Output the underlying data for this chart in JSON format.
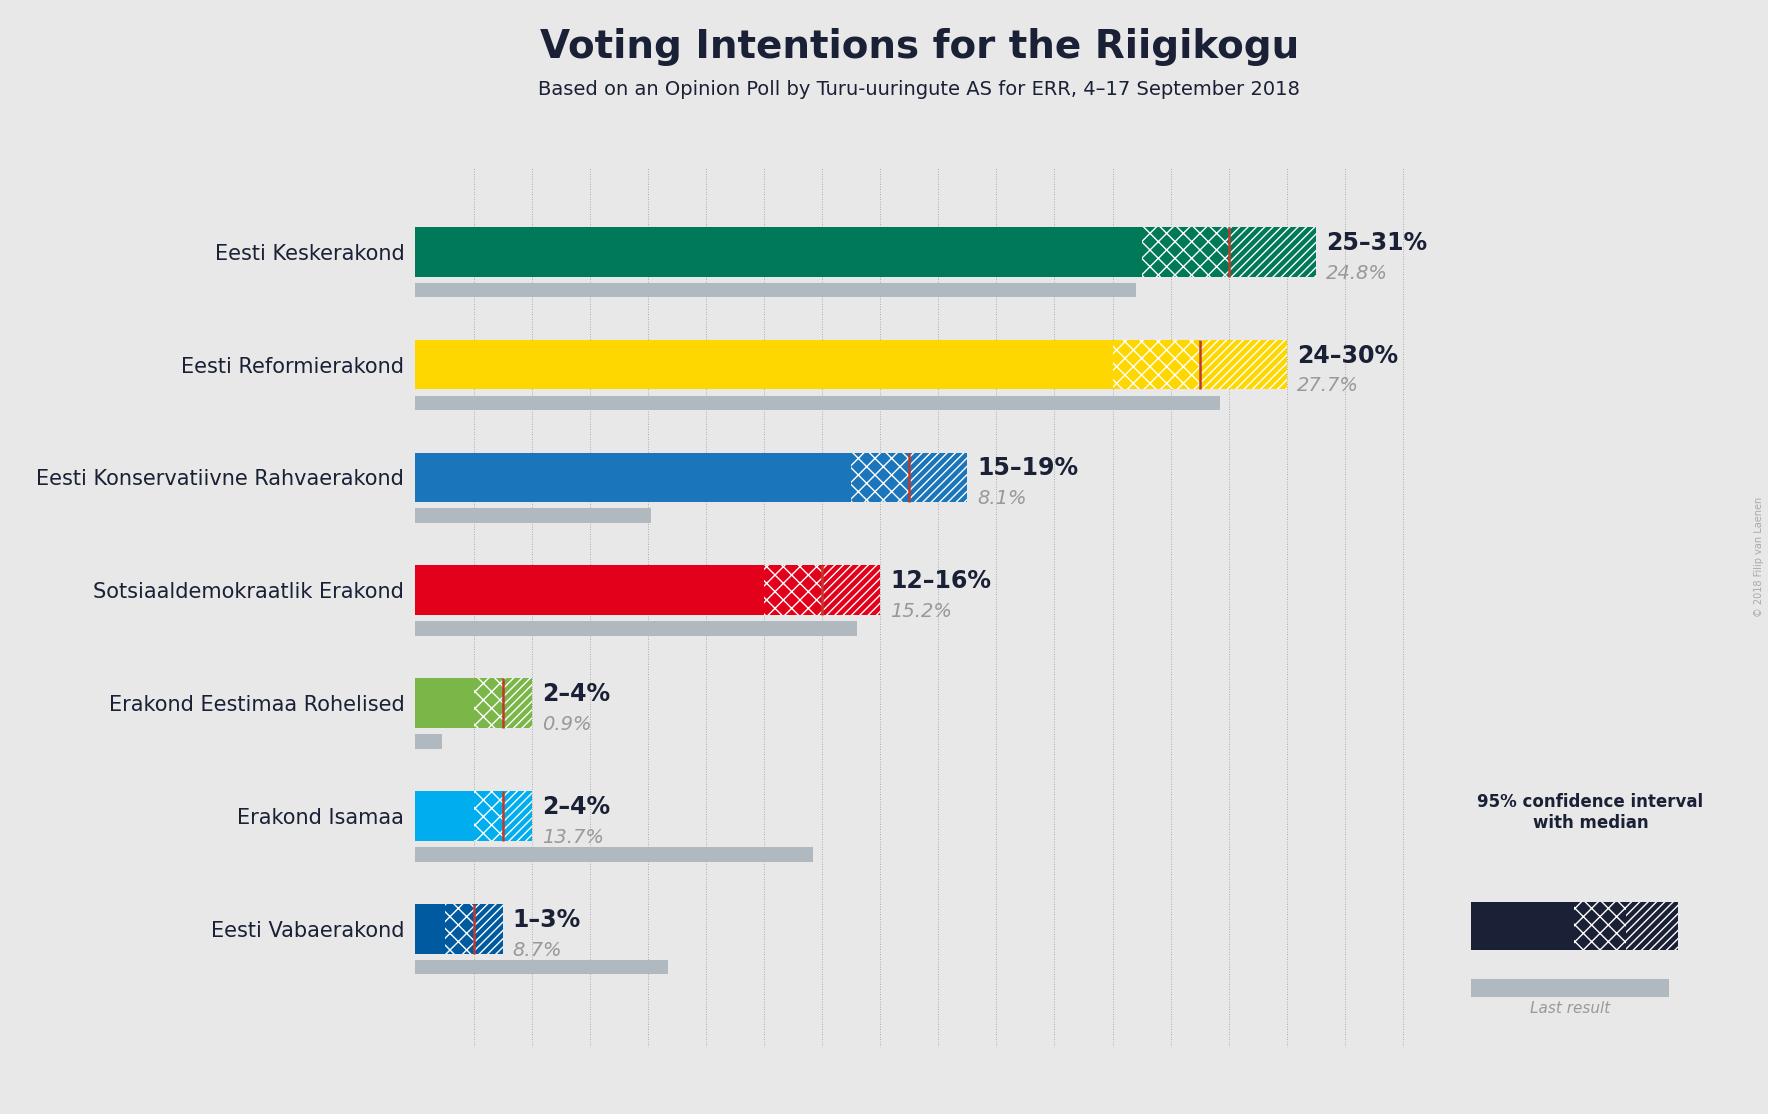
{
  "title": "Voting Intentions for the Riigikogu",
  "subtitle": "Based on an Opinion Poll by Turu-uuringute AS for ERR, 4–17 September 2018",
  "copyright": "© 2018 Filip van Laenen",
  "background_color": "#e8e8e8",
  "parties": [
    {
      "name": "Eesti Keskerakond",
      "color": "#007958",
      "ci_low": 25,
      "ci_high": 31,
      "median": 28,
      "last_result": 24.8,
      "label": "25–31%",
      "label2": "24.8%"
    },
    {
      "name": "Eesti Reformierakond",
      "color": "#FFD700",
      "ci_low": 24,
      "ci_high": 30,
      "median": 27,
      "last_result": 27.7,
      "label": "24–30%",
      "label2": "27.7%"
    },
    {
      "name": "Eesti Konservatiivne Rahvaerakond",
      "color": "#1B75BB",
      "ci_low": 15,
      "ci_high": 19,
      "median": 17,
      "last_result": 8.1,
      "label": "15–19%",
      "label2": "8.1%"
    },
    {
      "name": "Sotsiaaldemokraatlik Erakond",
      "color": "#E3001B",
      "ci_low": 12,
      "ci_high": 16,
      "median": 14,
      "last_result": 15.2,
      "label": "12–16%",
      "label2": "15.2%"
    },
    {
      "name": "Erakond Eestimaa Rohelised",
      "color": "#7AB648",
      "ci_low": 2,
      "ci_high": 4,
      "median": 3,
      "last_result": 0.9,
      "label": "2–4%",
      "label2": "0.9%"
    },
    {
      "name": "Erakond Isamaa",
      "color": "#00AEEF",
      "ci_low": 2,
      "ci_high": 4,
      "median": 3,
      "last_result": 13.7,
      "label": "2–4%",
      "label2": "13.7%"
    },
    {
      "name": "Eesti Vabaerakond",
      "color": "#005AA0",
      "ci_low": 1,
      "ci_high": 3,
      "median": 2,
      "last_result": 8.7,
      "label": "1–3%",
      "label2": "8.7%"
    }
  ],
  "xlim": [
    0,
    35
  ],
  "median_line_color": "#C0392B",
  "last_result_color": "#b0b8c0",
  "legend_color": "#1a2035",
  "label_fontsize": 17,
  "label2_fontsize": 14,
  "party_fontsize": 15,
  "title_fontsize": 28,
  "subtitle_fontsize": 14
}
